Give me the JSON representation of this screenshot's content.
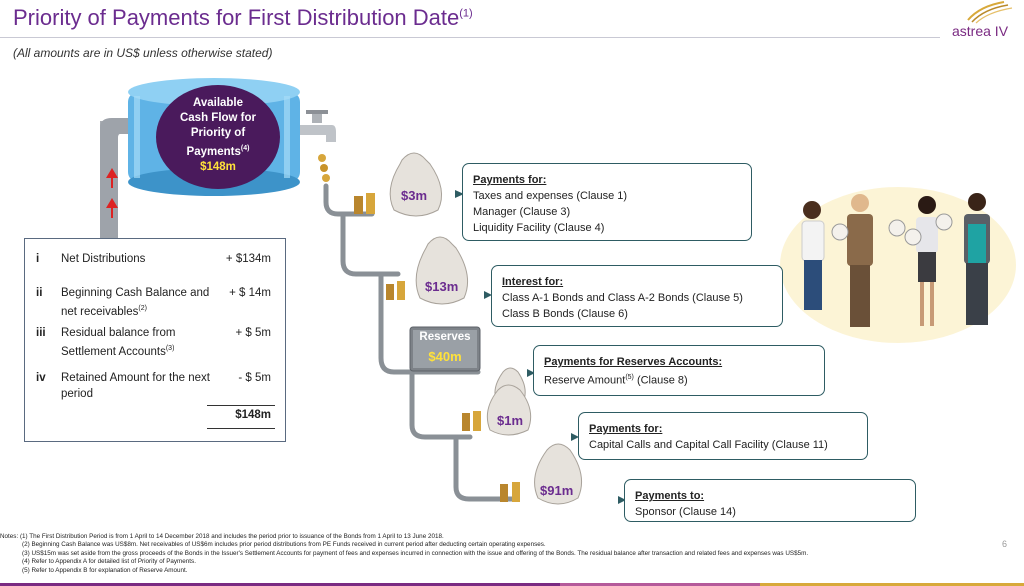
{
  "header": {
    "title": "Priority of Payments for First Distribution Date",
    "title_note": "(1)",
    "subtitle": "(All amounts are in US$ unless otherwise stated)",
    "logo": "astrea IV"
  },
  "cash_flow": {
    "line1": "Available",
    "line2": "Cash Flow for",
    "line3": "Priority of",
    "line4": "Payments",
    "line4_note": "(4)",
    "amount": "$148m"
  },
  "sources": {
    "rows": [
      {
        "num": "i",
        "label": "Net Distributions",
        "note": "",
        "value": "+ $134m"
      },
      {
        "num": "ii",
        "label": "Beginning Cash Balance and net receivables",
        "note": "(2)",
        "value": "+ $  14m"
      },
      {
        "num": "iii",
        "label": "Residual balance from Settlement Accounts",
        "note": "(3)",
        "value": "+ $    5m"
      },
      {
        "num": "iv",
        "label": "Retained Amount for the next period",
        "note": "",
        "value": "- $    5m"
      }
    ],
    "total": "$148m"
  },
  "payments": [
    {
      "amount": "$3m",
      "heading": "Payments for:",
      "lines": [
        "Taxes and expenses (Clause 1)",
        "Manager (Clause 3)",
        "Liquidity Facility (Clause 4)"
      ]
    },
    {
      "amount": "$13m",
      "heading": "Interest for:",
      "lines": [
        "Class A-1 Bonds and Class A-2 Bonds (Clause 5)",
        "Class B Bonds (Clause 6)"
      ]
    },
    {
      "amount": "$40m",
      "heading": "Payments for Reserves Accounts:",
      "lines": [
        "Reserve Amount",
        "(5)",
        " (Clause 8)"
      ]
    },
    {
      "amount": "$1m",
      "heading": "Payments for:",
      "lines": [
        "Capital Calls and Capital Call Facility (Clause 11)"
      ]
    },
    {
      "amount": "$91m",
      "heading": "Payments to:",
      "lines": [
        "Sponsor (Clause 14)"
      ]
    }
  ],
  "reserves_label": "Reserves",
  "notes": [
    "Notes: (1) The First Distribution Period is from 1 April to 14 December 2018 and includes the period prior to issuance of the Bonds from 1 April to 13 June 2018.",
    "(2) Beginning Cash Balance was US$8m. Net receivables of US$6m includes prior period distributions from PE Funds received in current period after deducting certain operating expenses.",
    "(3) US$15m was set aside from the gross proceeds of the Bonds in the Issuer's Settlement Accounts for payment of fees and expenses incurred in connection with the issue and offering of the Bonds. The residual balance after transaction and related fees and expenses was US$5m.",
    "(4) Refer to Appendix A for detailed list of Priority of Payments.",
    "(5) Refer to Appendix B for explanation of Reserve Amount."
  ],
  "page_number": "6",
  "colors": {
    "title_purple": "#6b2c8f",
    "tank_blue": "#5fb3e6",
    "oval_purple": "#4a1a5c",
    "box_border": "#2e5c63",
    "footer_purple": "#7a2a82",
    "footer_gold": "#d8a93a"
  }
}
